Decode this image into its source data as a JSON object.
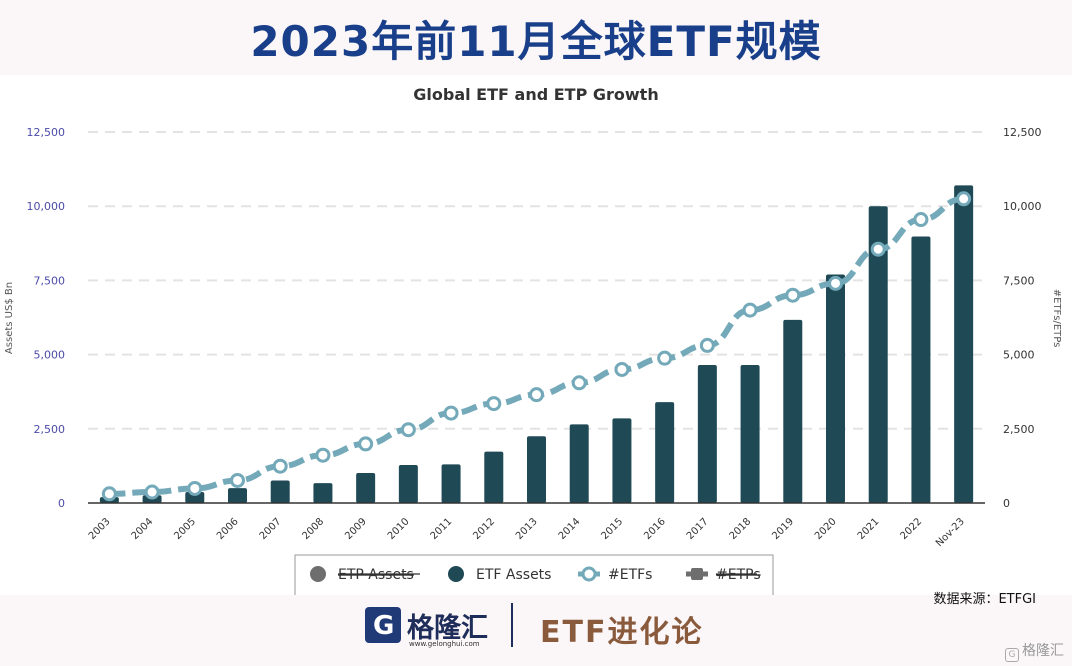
{
  "page_title": "2023年前11月全球ETF规模",
  "chart_data": {
    "type": "bar+line",
    "title": "Global ETF and ETP Growth",
    "ylabel_left": "Assets US$ Bn",
    "ylabel_right": "#ETFs/ETPs",
    "ylim": [
      0,
      12500
    ],
    "yticks": [
      "0",
      "2,500",
      "5,000",
      "7,500",
      "10,000",
      "12,500"
    ],
    "grid": true,
    "categories": [
      "2003",
      "2004",
      "2005",
      "2006",
      "2007",
      "2008",
      "2009",
      "2010",
      "2011",
      "2012",
      "2013",
      "2014",
      "2015",
      "2016",
      "2017",
      "2018",
      "2019",
      "2020",
      "2021",
      "2022",
      "Nov-23"
    ],
    "series": [
      {
        "name": "ETF Assets",
        "type": "bar",
        "color": "#1f4a55",
        "values": [
          200,
          260,
          370,
          500,
          760,
          670,
          1010,
          1280,
          1300,
          1730,
          2250,
          2650,
          2850,
          3400,
          4650,
          4650,
          6170,
          7700,
          10000,
          8980,
          10700
        ]
      },
      {
        "name": "#ETFs",
        "type": "line",
        "color": "#74a9b9",
        "values": [
          310,
          370,
          490,
          760,
          1240,
          1610,
          1990,
          2470,
          3030,
          3350,
          3650,
          4050,
          4500,
          4880,
          5310,
          6500,
          7000,
          7400,
          8550,
          9550,
          10250
        ]
      }
    ],
    "legend": {
      "placement": "bottom",
      "items": [
        {
          "label": "ETP Assets",
          "marker": "circle",
          "color": "#6e6e6e",
          "hidden": true
        },
        {
          "label": "ETF Assets",
          "marker": "circle",
          "color": "#1f4a55",
          "hidden": false
        },
        {
          "label": "#ETFs",
          "marker": "line-circle",
          "color": "#74a9b9",
          "hidden": false
        },
        {
          "label": "#ETPs",
          "marker": "line-square",
          "color": "#6e6e6e",
          "hidden": true
        }
      ]
    }
  },
  "source_label": "数据来源：ETFGI",
  "logo": {
    "name": "格隆汇",
    "url": "www.gelonghui.com",
    "glyph": "G"
  },
  "series_name": "ETF进化论",
  "watermark": "格隆汇"
}
